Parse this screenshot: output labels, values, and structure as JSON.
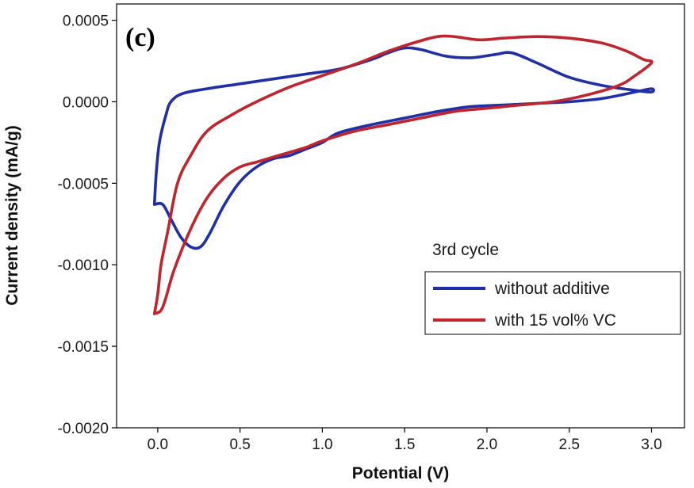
{
  "chart_data": {
    "type": "line",
    "panel_label": "(c)",
    "xlabel": "Potential (V)",
    "ylabel": "Current density (mA/g)",
    "xlim": [
      -0.25,
      3.2
    ],
    "ylim": [
      -0.002,
      0.0006
    ],
    "x_ticks": [
      0.0,
      0.5,
      1.0,
      1.5,
      2.0,
      2.5,
      3.0
    ],
    "x_tick_labels": [
      "0.0",
      "0.5",
      "1.0",
      "1.5",
      "2.0",
      "2.5",
      "3.0"
    ],
    "y_ticks": [
      0.0005,
      0.0,
      -0.0005,
      -0.001,
      -0.0015,
      -0.002
    ],
    "y_tick_labels": [
      "0.0005",
      "0.0000",
      "-0.0005",
      "-0.0010",
      "-0.0015",
      "-0.0020"
    ],
    "grid": false,
    "legend": {
      "title": "3rd cycle",
      "placement": "lower-right"
    },
    "series": [
      {
        "name": "without additive",
        "color": "#1f2fa8",
        "points": [
          [
            -0.02,
            -0.00063
          ],
          [
            0.03,
            -0.00063
          ],
          [
            0.08,
            -0.00072
          ],
          [
            0.14,
            -0.00083
          ],
          [
            0.2,
            -0.00089
          ],
          [
            0.26,
            -0.00089
          ],
          [
            0.32,
            -0.0008
          ],
          [
            0.4,
            -0.00064
          ],
          [
            0.5,
            -0.00049
          ],
          [
            0.6,
            -0.0004
          ],
          [
            0.7,
            -0.00035
          ],
          [
            0.8,
            -0.00033
          ],
          [
            0.9,
            -0.00029
          ],
          [
            1.0,
            -0.00025
          ],
          [
            1.1,
            -0.00019
          ],
          [
            1.3,
            -0.00014
          ],
          [
            1.5,
            -0.0001
          ],
          [
            1.7,
            -6e-05
          ],
          [
            1.9,
            -3e-05
          ],
          [
            2.1,
            -2e-05
          ],
          [
            2.3,
            -1e-05
          ],
          [
            2.5,
            0.0
          ],
          [
            2.7,
            2e-05
          ],
          [
            2.9,
            6e-05
          ],
          [
            3.0,
            8e-05
          ],
          [
            3.0,
            6e-05
          ],
          [
            2.9,
            7e-05
          ],
          [
            2.7,
            0.0001
          ],
          [
            2.5,
            0.00015
          ],
          [
            2.3,
            0.00024
          ],
          [
            2.15,
            0.0003
          ],
          [
            2.05,
            0.00029
          ],
          [
            1.9,
            0.00027
          ],
          [
            1.75,
            0.00028
          ],
          [
            1.6,
            0.00032
          ],
          [
            1.5,
            0.00033
          ],
          [
            1.4,
            0.0003
          ],
          [
            1.3,
            0.00026
          ],
          [
            1.1,
            0.0002
          ],
          [
            0.9,
            0.00017
          ],
          [
            0.7,
            0.00014
          ],
          [
            0.5,
            0.00011
          ],
          [
            0.3,
            8e-05
          ],
          [
            0.15,
            5e-05
          ],
          [
            0.08,
            0.0
          ],
          [
            0.05,
            -8e-05
          ],
          [
            0.01,
            -0.00025
          ],
          [
            -0.01,
            -0.00045
          ],
          [
            -0.02,
            -0.00063
          ]
        ]
      },
      {
        "name": "with 15 vol% VC",
        "color": "#c0242c",
        "points": [
          [
            -0.02,
            -0.0013
          ],
          [
            0.02,
            -0.00128
          ],
          [
            0.05,
            -0.0012
          ],
          [
            0.1,
            -0.00103
          ],
          [
            0.2,
            -0.00078
          ],
          [
            0.3,
            -0.00059
          ],
          [
            0.4,
            -0.00047
          ],
          [
            0.5,
            -0.0004
          ],
          [
            0.6,
            -0.00037
          ],
          [
            0.7,
            -0.00034
          ],
          [
            0.8,
            -0.00031
          ],
          [
            0.9,
            -0.00028
          ],
          [
            1.0,
            -0.00024
          ],
          [
            1.2,
            -0.00018
          ],
          [
            1.4,
            -0.00014
          ],
          [
            1.6,
            -0.0001
          ],
          [
            1.8,
            -6e-05
          ],
          [
            2.0,
            -4e-05
          ],
          [
            2.2,
            -2e-05
          ],
          [
            2.4,
            0.0
          ],
          [
            2.6,
            4e-05
          ],
          [
            2.8,
            0.0001
          ],
          [
            2.9,
            0.00016
          ],
          [
            3.0,
            0.00024
          ],
          [
            2.95,
            0.00026
          ],
          [
            2.85,
            0.00031
          ],
          [
            2.7,
            0.00036
          ],
          [
            2.5,
            0.00039
          ],
          [
            2.3,
            0.0004
          ],
          [
            2.1,
            0.00039
          ],
          [
            1.95,
            0.00038
          ],
          [
            1.8,
            0.0004
          ],
          [
            1.7,
            0.0004
          ],
          [
            1.55,
            0.00036
          ],
          [
            1.4,
            0.00031
          ],
          [
            1.2,
            0.00023
          ],
          [
            1.0,
            0.00016
          ],
          [
            0.8,
            9e-05
          ],
          [
            0.6,
            0.0
          ],
          [
            0.45,
            -8e-05
          ],
          [
            0.3,
            -0.00018
          ],
          [
            0.2,
            -0.00033
          ],
          [
            0.12,
            -0.0005
          ],
          [
            0.06,
            -0.0008
          ],
          [
            0.02,
            -0.001
          ],
          [
            0.0,
            -0.00118
          ],
          [
            -0.02,
            -0.0013
          ]
        ]
      }
    ]
  }
}
